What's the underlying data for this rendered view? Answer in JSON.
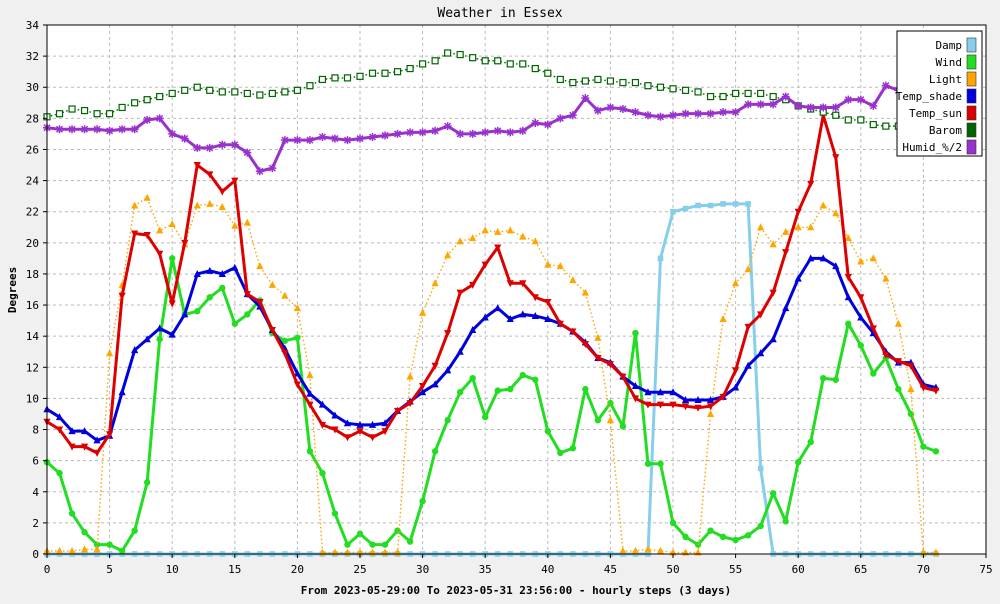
{
  "chart_data": {
    "type": "line",
    "title": "Weather in Essex",
    "xlabel": "From 2023-05-29:00 To 2023-05-31 23:56:00 - hourly steps (3 days)",
    "ylabel": "Degrees",
    "xlim": [
      0,
      75
    ],
    "ylim": [
      0,
      34
    ],
    "xticks": [
      0,
      5,
      10,
      15,
      20,
      25,
      30,
      35,
      40,
      45,
      50,
      55,
      60,
      65,
      70,
      75
    ],
    "yticks": [
      0,
      2,
      4,
      6,
      8,
      10,
      12,
      14,
      16,
      18,
      20,
      22,
      24,
      26,
      28,
      30,
      32,
      34
    ],
    "grid": true,
    "legend_position": "top-right",
    "x": [
      0,
      1,
      2,
      3,
      4,
      5,
      6,
      7,
      8,
      9,
      10,
      11,
      12,
      13,
      14,
      15,
      16,
      17,
      18,
      19,
      20,
      21,
      22,
      23,
      24,
      25,
      26,
      27,
      28,
      29,
      30,
      31,
      32,
      33,
      34,
      35,
      36,
      37,
      38,
      39,
      40,
      41,
      42,
      43,
      44,
      45,
      46,
      47,
      48,
      49,
      50,
      51,
      52,
      53,
      54,
      55,
      56,
      57,
      58,
      59,
      60,
      61,
      62,
      63,
      64,
      65,
      66,
      67,
      68,
      69,
      70,
      71
    ],
    "series": [
      {
        "name": "Damp",
        "color": "#87ceeb",
        "marker": "square",
        "style": "solid",
        "values": [
          0,
          0,
          0,
          0,
          0,
          0,
          0,
          0,
          0,
          0,
          0,
          0,
          0,
          0,
          0,
          0,
          0,
          0,
          0,
          0,
          0,
          0,
          0,
          0,
          0,
          0,
          0,
          0,
          0,
          0,
          0,
          0,
          0,
          0,
          0,
          0,
          0,
          0,
          0,
          0,
          0,
          0,
          0,
          0,
          0,
          0,
          0,
          0,
          0,
          19,
          22,
          22.2,
          22.4,
          22.4,
          22.5,
          22.5,
          22.5,
          5.5,
          0,
          0,
          0,
          0,
          0,
          0,
          0,
          0,
          0,
          0,
          0,
          0,
          0,
          0
        ]
      },
      {
        "name": "Wind",
        "color": "#22dd22",
        "marker": "circle",
        "style": "solid",
        "values": [
          5.9,
          5.2,
          2.6,
          1.4,
          0.6,
          0.6,
          0.2,
          1.5,
          4.6,
          13.8,
          19,
          15.4,
          15.6,
          16.5,
          17.1,
          14.8,
          15.4,
          16.3,
          14.2,
          13.7,
          13.9,
          6.6,
          5.2,
          2.6,
          0.6,
          1.3,
          0.6,
          0.6,
          1.5,
          0.8,
          3.4,
          6.6,
          8.6,
          10.4,
          11.3,
          8.8,
          10.5,
          10.6,
          11.5,
          11.2,
          7.9,
          6.5,
          6.8,
          10.6,
          8.6,
          9.7,
          8.2,
          14.2,
          5.8,
          5.8,
          2,
          1.1,
          0.6,
          1.5,
          1.1,
          0.9,
          1.2,
          1.8,
          3.9,
          2.1,
          5.9,
          7.2,
          11.3,
          11.2,
          14.8,
          13.4,
          11.6,
          12.6,
          10.6,
          9,
          6.9,
          6.6
        ]
      },
      {
        "name": "Light",
        "color": "#ffa500",
        "marker": "triangle",
        "style": "dotted",
        "values": [
          0.2,
          0.2,
          0.2,
          0.3,
          0.3,
          12.9,
          17.3,
          22.4,
          22.9,
          20.8,
          21.2,
          19.9,
          22.4,
          22.5,
          22.3,
          21.1,
          21.3,
          18.5,
          17.3,
          16.6,
          15.8,
          11.5,
          0.1,
          0.1,
          0.1,
          0.1,
          0.1,
          0.1,
          0.1,
          11.4,
          15.5,
          17.4,
          19.2,
          20.1,
          20.3,
          20.8,
          20.7,
          20.8,
          20.4,
          20.1,
          18.6,
          18.5,
          17.6,
          16.8,
          13.9,
          8.6,
          0.2,
          0.2,
          0.3,
          0.2,
          0.1,
          0.1,
          0.1,
          9,
          15.1,
          17.4,
          18.3,
          21,
          19.9,
          20.7,
          21,
          21,
          22.4,
          21.9,
          20.3,
          18.8,
          19,
          17.7,
          14.8,
          10.6,
          0.1,
          0.1
        ]
      },
      {
        "name": "Temp_shade",
        "color": "#0000dd",
        "marker": "triangle",
        "style": "solid",
        "values": [
          9.3,
          8.8,
          7.9,
          7.9,
          7.3,
          7.6,
          10.4,
          13.1,
          13.8,
          14.5,
          14.1,
          15.4,
          18,
          18.2,
          18,
          18.4,
          16.7,
          15.9,
          14.4,
          13.2,
          11.6,
          10.3,
          9.6,
          8.9,
          8.4,
          8.3,
          8.3,
          8.4,
          9.2,
          9.8,
          10.4,
          10.9,
          11.8,
          13,
          14.4,
          15.2,
          15.8,
          15.1,
          15.4,
          15.3,
          15.1,
          14.8,
          14.3,
          13.6,
          12.6,
          12.3,
          11.4,
          10.8,
          10.4,
          10.4,
          10.4,
          9.9,
          9.9,
          9.9,
          10.1,
          10.7,
          12.1,
          12.9,
          13.8,
          15.8,
          17.7,
          19,
          19,
          18.5,
          16.5,
          15.2,
          14.2,
          13,
          12.3,
          12.3,
          10.9,
          10.7
        ]
      },
      {
        "name": "Temp_sun",
        "color": "#dd0000",
        "marker": "triangle-down",
        "style": "solid",
        "values": [
          8.5,
          8,
          6.9,
          6.9,
          6.5,
          7.7,
          16.6,
          20.6,
          20.5,
          19.3,
          16.1,
          20,
          25,
          24.4,
          23.3,
          24,
          16.7,
          16.2,
          14.4,
          12.9,
          10.9,
          9.6,
          8.3,
          8,
          7.5,
          7.9,
          7.5,
          7.9,
          9.2,
          9.7,
          10.8,
          12.1,
          14.2,
          16.8,
          17.3,
          18.6,
          19.7,
          17.4,
          17.4,
          16.5,
          16.2,
          14.8,
          14.3,
          13.5,
          12.6,
          12.2,
          11.4,
          10,
          9.6,
          9.6,
          9.6,
          9.5,
          9.4,
          9.5,
          10.1,
          11.8,
          14.6,
          15.4,
          16.8,
          19.4,
          22,
          23.8,
          28.2,
          25.5,
          17.8,
          16.5,
          14.5,
          12.8,
          12.4,
          12.1,
          10.7,
          10.5
        ]
      },
      {
        "name": "Barom",
        "color": "#006400",
        "marker": "square",
        "style": "dotted",
        "values": [
          28.1,
          28.3,
          28.6,
          28.5,
          28.3,
          28.3,
          28.7,
          29,
          29.2,
          29.4,
          29.6,
          29.8,
          30,
          29.8,
          29.7,
          29.7,
          29.6,
          29.5,
          29.6,
          29.7,
          29.8,
          30.1,
          30.5,
          30.6,
          30.6,
          30.7,
          30.9,
          30.9,
          31,
          31.2,
          31.5,
          31.7,
          32.2,
          32.1,
          31.9,
          31.7,
          31.7,
          31.5,
          31.5,
          31.2,
          30.9,
          30.5,
          30.3,
          30.4,
          30.5,
          30.4,
          30.3,
          30.3,
          30.1,
          30,
          29.9,
          29.8,
          29.7,
          29.4,
          29.4,
          29.6,
          29.6,
          29.6,
          29.4,
          29.2,
          28.8,
          28.6,
          28.4,
          28.2,
          27.9,
          27.9,
          27.6,
          27.5,
          27.5,
          27.5,
          27.5,
          27.5
        ]
      },
      {
        "name": "Humid_%/2",
        "color": "#9932cc",
        "marker": "star",
        "style": "solid",
        "values": [
          27.4,
          27.3,
          27.3,
          27.3,
          27.3,
          27.2,
          27.3,
          27.3,
          27.9,
          28,
          27,
          26.7,
          26.1,
          26.1,
          26.3,
          26.3,
          25.8,
          24.6,
          24.8,
          26.6,
          26.6,
          26.6,
          26.8,
          26.7,
          26.6,
          26.7,
          26.8,
          26.9,
          27,
          27.1,
          27.1,
          27.2,
          27.5,
          27,
          27,
          27.1,
          27.2,
          27.1,
          27.2,
          27.7,
          27.6,
          28,
          28.2,
          29.3,
          28.5,
          28.7,
          28.6,
          28.4,
          28.2,
          28.1,
          28.2,
          28.3,
          28.3,
          28.3,
          28.4,
          28.4,
          28.9,
          28.9,
          28.9,
          29.4,
          28.8,
          28.7,
          28.7,
          28.7,
          29.2,
          29.2,
          28.8,
          30.1,
          29.8,
          29.8,
          29.8,
          29.8
        ]
      }
    ]
  }
}
